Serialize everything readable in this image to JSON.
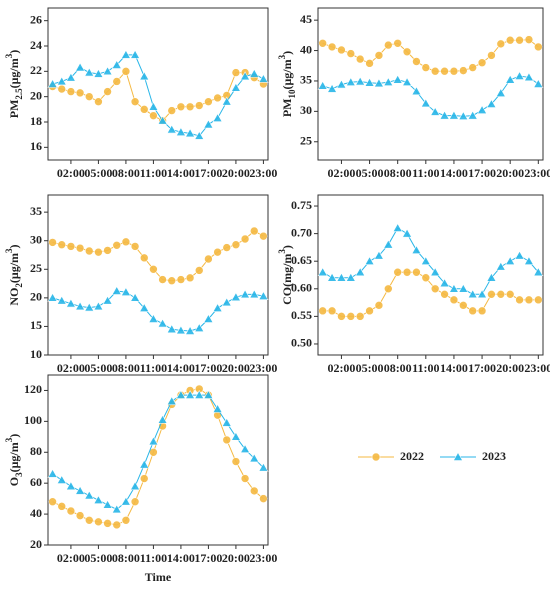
{
  "chart_data": [
    {
      "type": "line",
      "ylabel_parts": [
        {
          "text": "PM"
        },
        {
          "text": "2.5",
          "sub": true
        },
        {
          "text": "(μg/m"
        },
        {
          "text": "3",
          "sup": true
        },
        {
          "text": ")"
        }
      ],
      "categories": [
        null,
        null,
        "02:00",
        null,
        null,
        "05:00",
        null,
        null,
        "08:00",
        null,
        null,
        "11:00",
        null,
        null,
        "14:00",
        null,
        null,
        "17:00",
        null,
        null,
        "20:00",
        null,
        null,
        "23:00"
      ],
      "ylim": [
        15,
        27
      ],
      "yticks": [
        16,
        18,
        20,
        22,
        24,
        26
      ],
      "series": [
        {
          "color": "#f5b942",
          "marker": "circle",
          "values": [
            20.8,
            20.6,
            20.4,
            20.3,
            20.0,
            19.6,
            20.4,
            21.2,
            22.0,
            19.6,
            19.0,
            18.5,
            18.1,
            18.9,
            19.2,
            19.2,
            19.3,
            19.6,
            19.9,
            20.1,
            21.9,
            21.9,
            21.5,
            21.0
          ]
        },
        {
          "color": "#29b6e8",
          "marker": "triangle",
          "values": [
            21.0,
            21.2,
            21.5,
            22.3,
            21.9,
            21.8,
            22.0,
            22.5,
            23.3,
            23.3,
            21.6,
            19.2,
            18.1,
            17.4,
            17.2,
            17.1,
            16.9,
            17.8,
            18.3,
            19.6,
            20.7,
            21.6,
            21.8,
            21.4
          ]
        }
      ]
    },
    {
      "type": "line",
      "ylabel_parts": [
        {
          "text": "PM"
        },
        {
          "text": "10",
          "sub": true
        },
        {
          "text": "(μg/m"
        },
        {
          "text": "3",
          "sup": true
        },
        {
          "text": ")"
        }
      ],
      "categories": [
        null,
        null,
        "02:00",
        null,
        null,
        "05:00",
        null,
        null,
        "08:00",
        null,
        null,
        "11:00",
        null,
        null,
        "14:00",
        null,
        null,
        "17:00",
        null,
        null,
        "20:00",
        null,
        null,
        "23:00"
      ],
      "ylim": [
        22,
        47
      ],
      "yticks": [
        25,
        30,
        35,
        40,
        45
      ],
      "series": [
        {
          "color": "#f5b942",
          "marker": "circle",
          "values": [
            41.2,
            40.6,
            40.1,
            39.5,
            38.6,
            37.9,
            39.2,
            40.9,
            41.2,
            39.8,
            38.2,
            37.2,
            36.6,
            36.6,
            36.6,
            36.7,
            37.2,
            38.0,
            39.2,
            41.1,
            41.7,
            41.7,
            41.8,
            40.6
          ]
        },
        {
          "color": "#29b6e8",
          "marker": "triangle",
          "values": [
            34.2,
            33.7,
            34.4,
            34.8,
            34.9,
            34.7,
            34.6,
            34.8,
            35.2,
            34.8,
            33.3,
            31.3,
            29.9,
            29.3,
            29.3,
            29.2,
            29.3,
            30.2,
            31.2,
            33.0,
            35.2,
            35.8,
            35.6,
            34.5
          ]
        }
      ]
    },
    {
      "type": "line",
      "ylabel_parts": [
        {
          "text": "NO"
        },
        {
          "text": "2",
          "sub": true
        },
        {
          "text": "(μg/m"
        },
        {
          "text": "3",
          "sup": true
        },
        {
          "text": ")"
        }
      ],
      "categories": [
        null,
        null,
        "02:00",
        null,
        null,
        "05:00",
        null,
        null,
        "08:00",
        null,
        null,
        "11:00",
        null,
        null,
        "14:00",
        null,
        null,
        "17:00",
        null,
        null,
        "20:00",
        null,
        null,
        "23:00"
      ],
      "ylim": [
        10,
        38
      ],
      "yticks": [
        10,
        15,
        20,
        25,
        30,
        35
      ],
      "series": [
        {
          "color": "#f5b942",
          "marker": "circle",
          "values": [
            29.7,
            29.3,
            29.0,
            28.7,
            28.2,
            28.0,
            28.3,
            29.2,
            29.8,
            29.0,
            27.0,
            25.0,
            23.2,
            23.0,
            23.2,
            23.5,
            24.8,
            26.8,
            28.0,
            28.8,
            29.3,
            30.3,
            31.7,
            30.8
          ]
        },
        {
          "color": "#29b6e8",
          "marker": "triangle",
          "values": [
            20.0,
            19.5,
            19.0,
            18.5,
            18.3,
            18.5,
            19.5,
            21.2,
            21.0,
            20.0,
            18.2,
            16.3,
            15.5,
            14.5,
            14.3,
            14.2,
            14.7,
            16.3,
            18.2,
            19.2,
            20.1,
            20.6,
            20.6,
            20.3
          ]
        }
      ]
    },
    {
      "type": "line",
      "ylabel_parts": [
        {
          "text": "CO(mg/m"
        },
        {
          "text": "3",
          "sup": true
        },
        {
          "text": ")"
        }
      ],
      "categories": [
        null,
        null,
        "02:00",
        null,
        null,
        "05:00",
        null,
        null,
        "08:00",
        null,
        null,
        "11:00",
        null,
        null,
        "14:00",
        null,
        null,
        "17:00",
        null,
        null,
        "20:00",
        null,
        null,
        "23:00"
      ],
      "ylim": [
        0.48,
        0.77
      ],
      "yticks": [
        {
          "value": 0.5,
          "label": "0.50"
        },
        {
          "value": 0.55,
          "label": "0.55"
        },
        {
          "value": 0.6,
          "label": "0.60"
        },
        {
          "value": 0.65,
          "label": "0.65"
        },
        {
          "value": 0.7,
          "label": "0.70"
        },
        {
          "value": 0.75,
          "label": "0.75"
        }
      ],
      "series": [
        {
          "color": "#f5b942",
          "marker": "circle",
          "values": [
            0.56,
            0.56,
            0.55,
            0.55,
            0.55,
            0.56,
            0.57,
            0.6,
            0.63,
            0.63,
            0.63,
            0.62,
            0.6,
            0.59,
            0.58,
            0.57,
            0.56,
            0.56,
            0.59,
            0.59,
            0.59,
            0.58,
            0.58,
            0.58
          ]
        },
        {
          "color": "#29b6e8",
          "marker": "triangle",
          "values": [
            0.63,
            0.62,
            0.62,
            0.62,
            0.63,
            0.65,
            0.66,
            0.68,
            0.71,
            0.7,
            0.67,
            0.65,
            0.63,
            0.61,
            0.6,
            0.6,
            0.59,
            0.59,
            0.62,
            0.64,
            0.65,
            0.66,
            0.65,
            0.63
          ]
        }
      ]
    },
    {
      "type": "line",
      "ylabel_parts": [
        {
          "text": "O"
        },
        {
          "text": "3",
          "sub": true
        },
        {
          "text": "(μg/m"
        },
        {
          "text": "3",
          "sup": true
        },
        {
          "text": ")"
        }
      ],
      "xlabel": "Time",
      "categories": [
        null,
        null,
        "02:00",
        null,
        null,
        "05:00",
        null,
        null,
        "08:00",
        null,
        null,
        "11:00",
        null,
        null,
        "14:00",
        null,
        null,
        "17:00",
        null,
        null,
        "20:00",
        null,
        null,
        "23:00"
      ],
      "ylim": [
        20,
        130
      ],
      "yticks": [
        20,
        40,
        60,
        80,
        100,
        120
      ],
      "series": [
        {
          "name": "2022",
          "color": "#f5b942",
          "marker": "circle",
          "values": [
            48,
            45,
            42,
            39,
            36,
            35,
            34,
            33,
            36,
            48,
            63,
            80,
            97,
            111,
            117,
            120,
            121,
            117,
            104,
            88,
            74,
            63,
            55,
            50
          ]
        },
        {
          "name": "2023",
          "color": "#29b6e8",
          "marker": "triangle",
          "values": [
            66,
            62,
            58,
            55,
            52,
            49,
            46,
            43,
            48,
            58,
            72,
            87,
            101,
            113,
            117,
            117,
            117,
            117,
            108,
            99,
            90,
            82,
            76,
            70
          ]
        }
      ]
    }
  ]
}
